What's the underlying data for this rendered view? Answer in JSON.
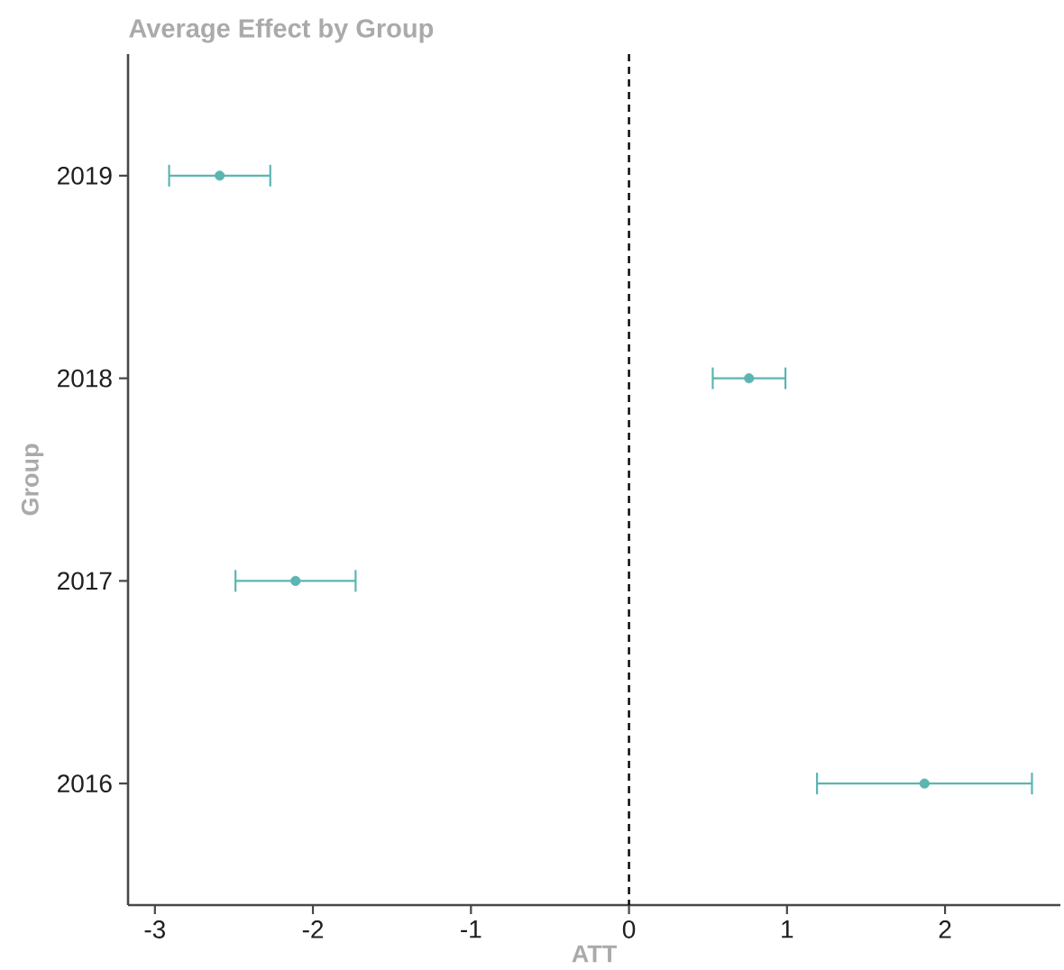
{
  "chart_data": {
    "type": "scatter",
    "orientation": "horizontal",
    "title": "Average Effect by Group",
    "xlabel": "ATT",
    "ylabel": "Group",
    "categories": [
      "2019",
      "2018",
      "2017",
      "2016"
    ],
    "values": [
      -2.59,
      0.76,
      -2.11,
      1.87
    ],
    "errors": [
      0.32,
      0.23,
      0.38,
      0.68
    ],
    "color": "#5bb5b2",
    "marker": "circle",
    "xlim": [
      -3.17,
      2.73
    ],
    "xticks": [
      -3,
      -2,
      -1,
      0,
      1,
      2
    ],
    "ref_lines": [
      {
        "axis": "x",
        "value": 0,
        "line_style": "dashed",
        "color": "#000000"
      }
    ]
  }
}
